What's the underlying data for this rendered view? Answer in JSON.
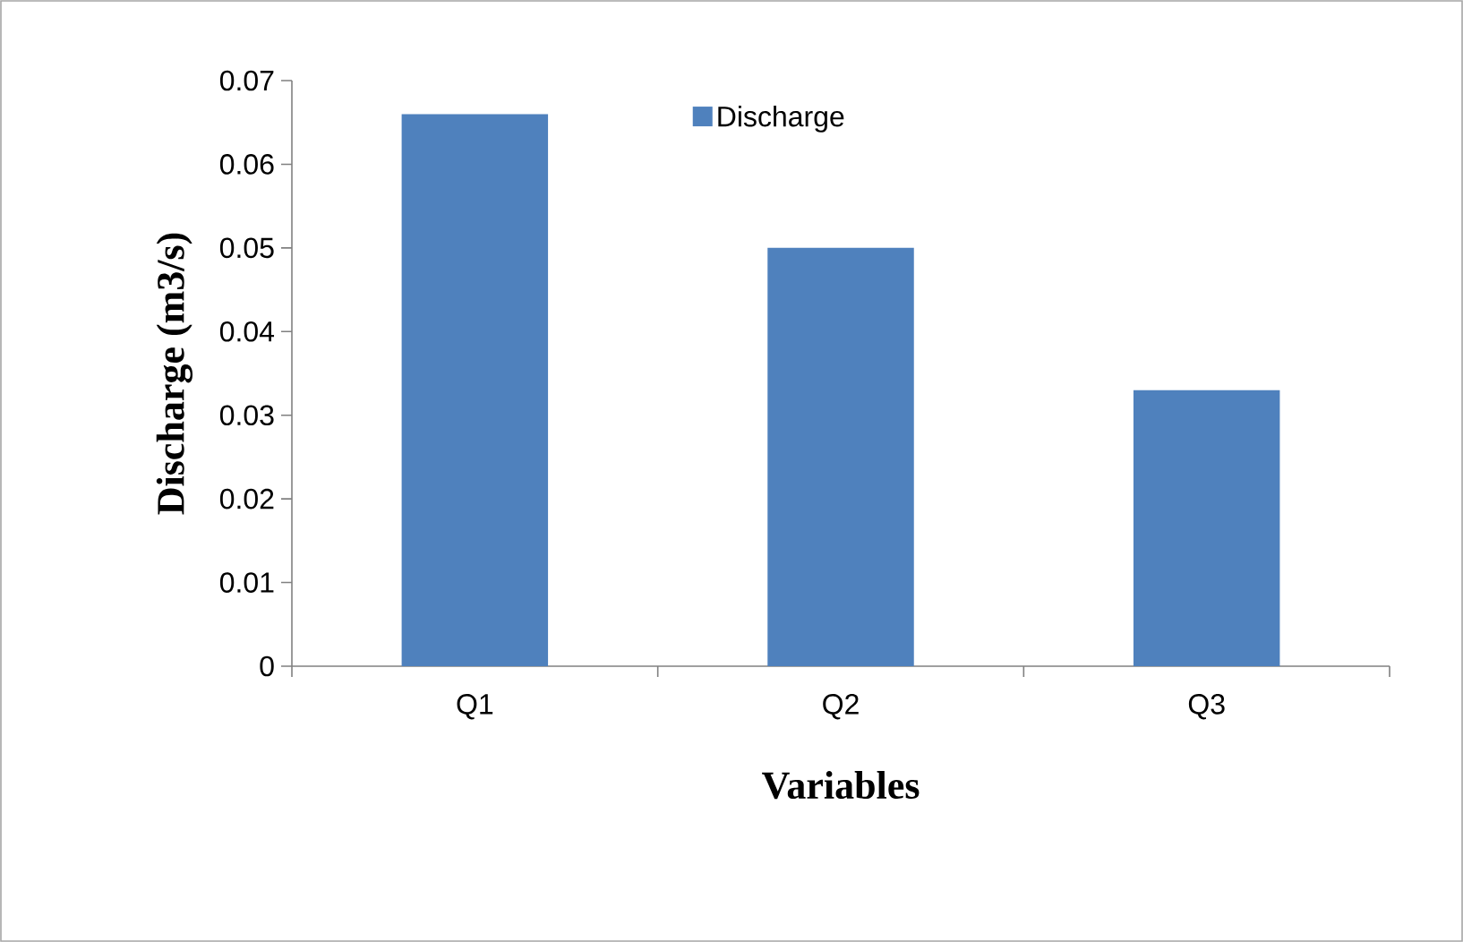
{
  "chart_data": {
    "type": "bar",
    "xlabel": "Variables",
    "ylabel": "Discharge (m3/s)",
    "categories": [
      "Q1",
      "Q2",
      "Q3"
    ],
    "series": [
      {
        "name": "Discharge",
        "color": "#4f81bd",
        "values": [
          0.066,
          0.05,
          0.033
        ]
      }
    ],
    "ylim": [
      0,
      0.07
    ],
    "yticks": [
      0,
      0.01,
      0.02,
      0.03,
      0.04,
      0.05,
      0.06,
      0.07
    ],
    "legend": "top"
  }
}
